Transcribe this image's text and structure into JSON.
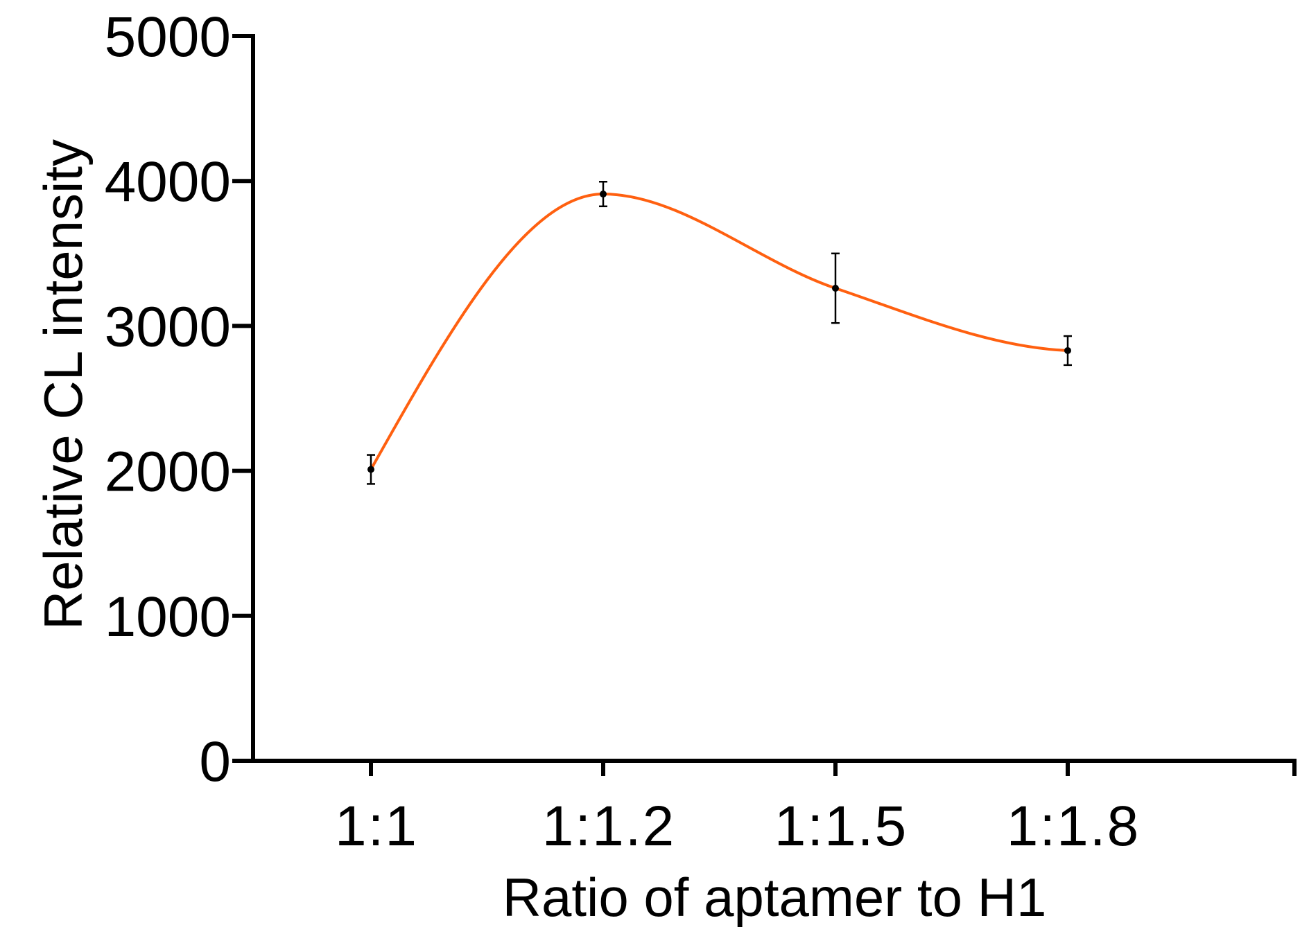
{
  "chart_data": {
    "type": "line",
    "title": "",
    "xlabel": "Ratio of aptamer to H1",
    "ylabel": "Relative CL intensity",
    "categories": [
      "1:1",
      "1:1.2",
      "1:1.5",
      "1:1.8"
    ],
    "series": [
      {
        "values": [
          2010,
          3910,
          3260,
          2830
        ],
        "errors": [
          100,
          85,
          240,
          100
        ],
        "color": "#ff6010"
      }
    ],
    "ylim": [
      0,
      5000
    ],
    "yticks": [
      0,
      1000,
      2000,
      3000,
      4000,
      5000
    ],
    "ytick_labels": [
      "0",
      "1000",
      "2000",
      "3000",
      "4000",
      "5000"
    ],
    "grid": false,
    "legend": "none",
    "smooth": true
  }
}
